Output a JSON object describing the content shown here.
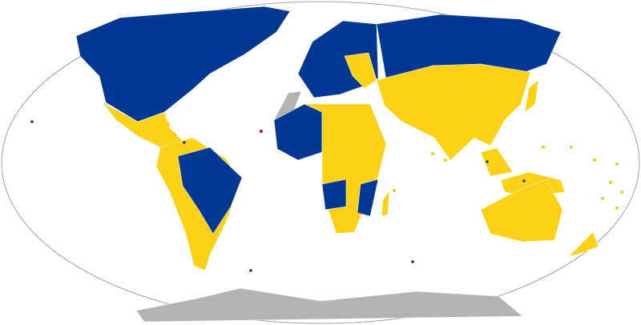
{
  "map": {
    "projection": "Robinson",
    "colors": {
      "group_a": "#003893",
      "group_b": "#fcd116",
      "no_data": "#b3b3b3",
      "special": "#ce1126",
      "ocean": "#ffffff",
      "outline": "#a0a0a0"
    }
  }
}
